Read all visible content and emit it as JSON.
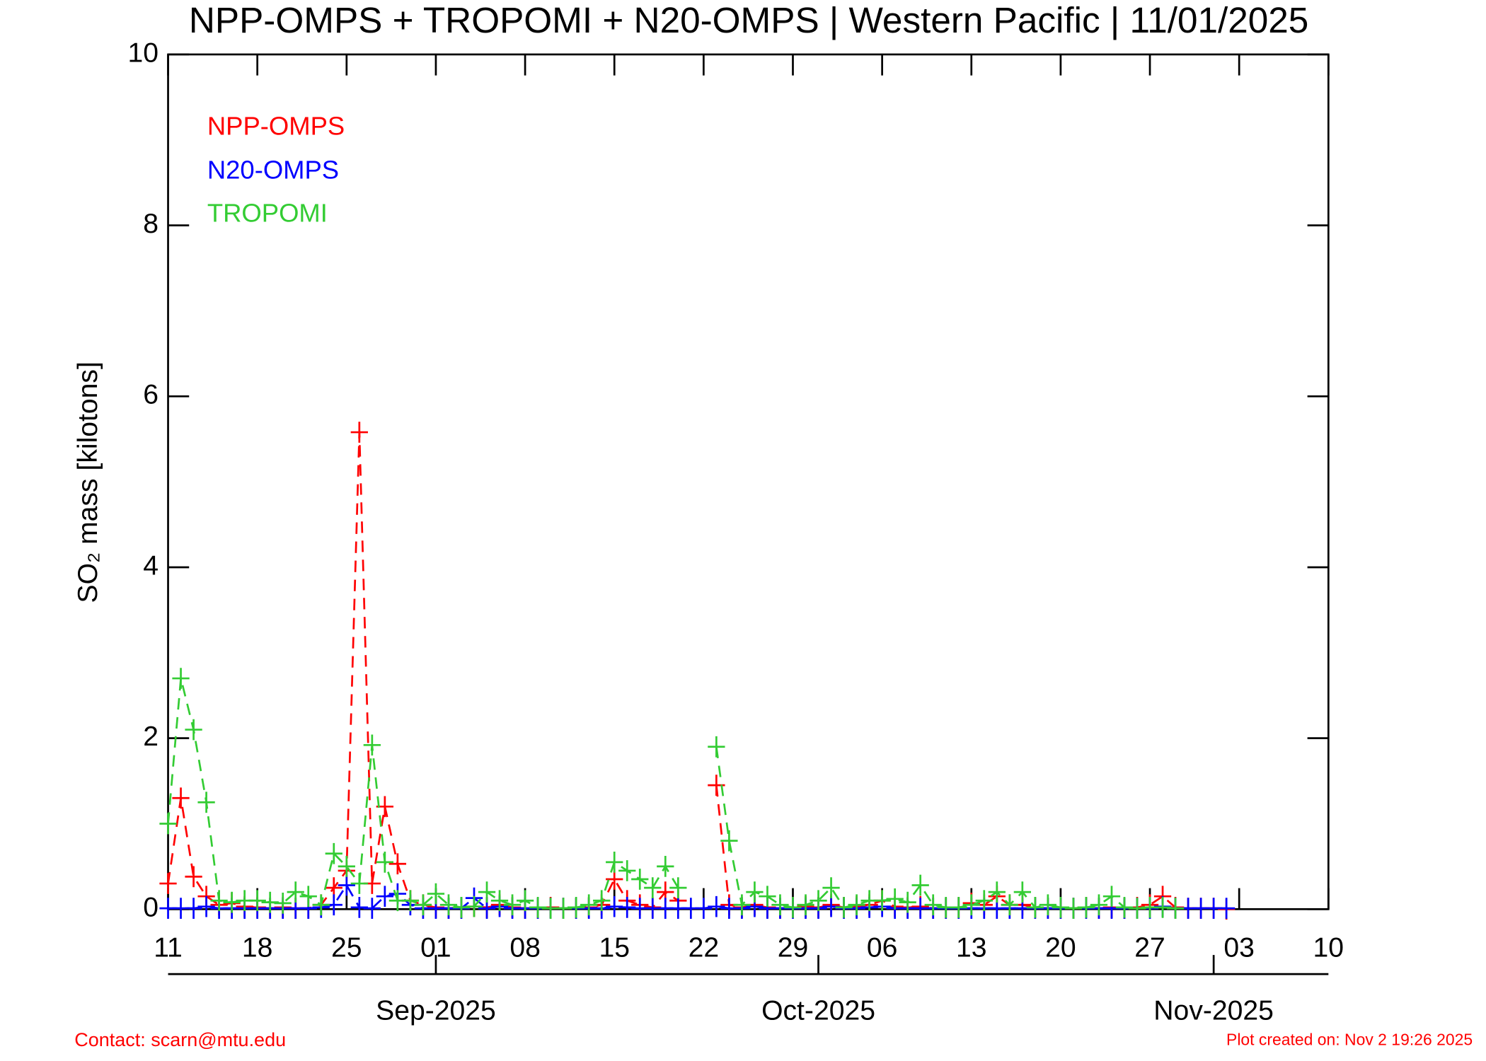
{
  "chart_data": {
    "type": "line",
    "title": "NPP-OMPS + TROPOMI + N20-OMPS | Western Pacific | 11/01/2025",
    "y_label": "SO₂ mass [kilotons]",
    "annotations": [
      "Contact: scarn@mtu.edu",
      "Plot created on: Nov  2 19:26 2025"
    ],
    "xlim": [
      "2025-08-11",
      "2025-11-10"
    ],
    "xticks": [
      {
        "value": "2025-08-11",
        "label": "11"
      },
      {
        "value": "2025-08-18",
        "label": "18"
      },
      {
        "value": "2025-08-25",
        "label": "25"
      },
      {
        "value": "2025-09-01",
        "label": "01"
      },
      {
        "value": "2025-09-08",
        "label": "08"
      },
      {
        "value": "2025-09-15",
        "label": "15"
      },
      {
        "value": "2025-09-22",
        "label": "22"
      },
      {
        "value": "2025-09-29",
        "label": "29"
      },
      {
        "value": "2025-10-06",
        "label": "06"
      },
      {
        "value": "2025-10-13",
        "label": "13"
      },
      {
        "value": "2025-10-20",
        "label": "20"
      },
      {
        "value": "2025-10-27",
        "label": "27"
      },
      {
        "value": "2025-11-03",
        "label": "03"
      },
      {
        "value": "2025-11-10",
        "label": "10"
      }
    ],
    "month_ticks": [
      {
        "value": "2025-09-01",
        "label": "Sep-2025"
      },
      {
        "value": "2025-10-01",
        "label": "Oct-2025"
      },
      {
        "value": "2025-11-01",
        "label": "Nov-2025"
      }
    ],
    "ylim": [
      0,
      10
    ],
    "yticks": [
      0,
      2,
      4,
      6,
      8,
      10
    ],
    "x": [
      "2025-08-11",
      "2025-08-12",
      "2025-08-13",
      "2025-08-14",
      "2025-08-15",
      "2025-08-16",
      "2025-08-17",
      "2025-08-18",
      "2025-08-19",
      "2025-08-20",
      "2025-08-21",
      "2025-08-22",
      "2025-08-23",
      "2025-08-24",
      "2025-08-25",
      "2025-08-26",
      "2025-08-27",
      "2025-08-28",
      "2025-08-29",
      "2025-08-30",
      "2025-08-31",
      "2025-09-01",
      "2025-09-02",
      "2025-09-03",
      "2025-09-04",
      "2025-09-05",
      "2025-09-06",
      "2025-09-07",
      "2025-09-08",
      "2025-09-09",
      "2025-09-10",
      "2025-09-11",
      "2025-09-12",
      "2025-09-13",
      "2025-09-14",
      "2025-09-15",
      "2025-09-16",
      "2025-09-17",
      "2025-09-18",
      "2025-09-19",
      "2025-09-20",
      "2025-09-21",
      "2025-09-22",
      "2025-09-23",
      "2025-09-24",
      "2025-09-25",
      "2025-09-26",
      "2025-09-27",
      "2025-09-28",
      "2025-09-29",
      "2025-09-30",
      "2025-10-01",
      "2025-10-02",
      "2025-10-03",
      "2025-10-04",
      "2025-10-05",
      "2025-10-06",
      "2025-10-07",
      "2025-10-08",
      "2025-10-09",
      "2025-10-10",
      "2025-10-11",
      "2025-10-12",
      "2025-10-13",
      "2025-10-14",
      "2025-10-15",
      "2025-10-16",
      "2025-10-17",
      "2025-10-18",
      "2025-10-19",
      "2025-10-20",
      "2025-10-21",
      "2025-10-22",
      "2025-10-23",
      "2025-10-24",
      "2025-10-25",
      "2025-10-26",
      "2025-10-27",
      "2025-10-28",
      "2025-10-29",
      "2025-10-30",
      "2025-10-31",
      "2025-11-01",
      "2025-11-02"
    ],
    "series": [
      {
        "name": "NPP-OMPS",
        "color": "#ff0000",
        "values": [
          0.3,
          1.3,
          0.38,
          0.15,
          0.05,
          0.07,
          0.03,
          0.02,
          0.01,
          0.02,
          0.01,
          0.01,
          0.05,
          0.25,
          0.45,
          5.58,
          0.3,
          1.2,
          0.53,
          0.1,
          0.05,
          0.02,
          0.01,
          0.02,
          0.03,
          0.02,
          0.05,
          0.02,
          0.01,
          0.01,
          0.02,
          0.01,
          0.01,
          0.02,
          0.05,
          0.35,
          0.1,
          0.05,
          0.02,
          0.2,
          0.1,
          null,
          null,
          1.45,
          0.05,
          0.02,
          0.05,
          0.02,
          0.01,
          0.02,
          0.03,
          0.02,
          0.05,
          0.02,
          0.03,
          0.05,
          0.1,
          0.03,
          0.02,
          0.03,
          0.01,
          0.01,
          0.02,
          0.07,
          0.05,
          0.15,
          0.05,
          0.05,
          0.02,
          0.01,
          0.01,
          0.01,
          0.02,
          0.01,
          0.02,
          0.01,
          0.02,
          0.05,
          0.15,
          0.02,
          0.01,
          0.01,
          0.01,
          0
        ]
      },
      {
        "name": "N20-OMPS",
        "color": "#0000ff",
        "values": [
          0.01,
          0.01,
          0.01,
          0.03,
          0.01,
          0.01,
          0.01,
          0.01,
          0.01,
          0.01,
          0.01,
          0.01,
          0.02,
          0.05,
          0.28,
          0.02,
          0.01,
          0.15,
          0.18,
          0.05,
          0.01,
          0.01,
          0.01,
          0.01,
          0.13,
          0.01,
          0.03,
          0.01,
          0.01,
          0.01,
          0.01,
          0.01,
          0.01,
          0.01,
          0.01,
          0.03,
          0.02,
          0.01,
          0.01,
          0.01,
          0.01,
          0.01,
          0.01,
          0.03,
          0.01,
          0.01,
          0.03,
          0.01,
          0.01,
          0.01,
          0.01,
          0.01,
          0.03,
          0.01,
          0.01,
          0.02,
          0.03,
          0.01,
          0.01,
          0.01,
          0.01,
          0.01,
          0.01,
          0.01,
          0.01,
          0.01,
          0.01,
          0.01,
          0.01,
          0.01,
          0.01,
          0.01,
          0.01,
          0.01,
          0.01,
          0.01,
          0.01,
          0.01,
          0.03,
          0.01,
          0.01,
          0.01,
          0.01,
          0.01
        ]
      },
      {
        "name": "TROPOMI",
        "color": "#33cc33",
        "values": [
          1.0,
          2.7,
          2.1,
          1.25,
          0.1,
          0.08,
          0.1,
          0.1,
          0.08,
          0.07,
          0.2,
          0.15,
          0.05,
          0.65,
          0.5,
          0.3,
          1.92,
          0.55,
          0.1,
          0.1,
          0.05,
          0.18,
          0.05,
          0.02,
          0.03,
          0.2,
          0.1,
          0.05,
          0.1,
          0.02,
          0.01,
          0.01,
          0.02,
          0.05,
          0.1,
          0.55,
          0.45,
          0.35,
          0.25,
          0.5,
          0.25,
          null,
          null,
          1.9,
          0.8,
          0.05,
          0.2,
          0.15,
          0.05,
          0.02,
          0.05,
          0.1,
          0.25,
          0.02,
          0.05,
          0.1,
          0.1,
          0.12,
          0.08,
          0.28,
          0.05,
          0.02,
          0.02,
          0.05,
          0.1,
          0.2,
          0.05,
          0.2,
          0.02,
          0.05,
          0.02,
          0.01,
          0.02,
          0.05,
          0.15,
          0.02,
          0.01,
          0.02,
          0.02,
          0.01,
          null,
          null,
          null,
          null
        ]
      }
    ]
  }
}
